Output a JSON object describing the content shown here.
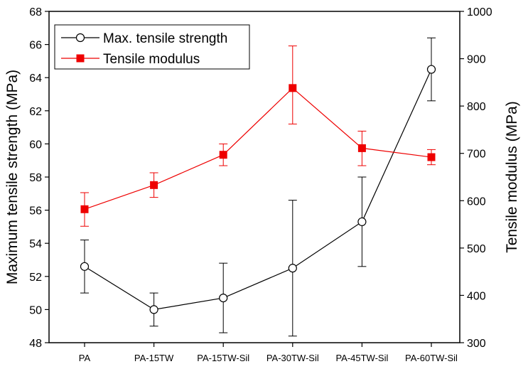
{
  "chart_data": {
    "type": "line",
    "title": "",
    "xlabel": "",
    "categories": [
      "PA",
      "PA-15TW",
      "PA-15TW-Sil",
      "PA-30TW-Sil",
      "PA-45TW-Sil",
      "PA-60TW-Sil"
    ],
    "left_axis": {
      "label": "Maximum tensile strength (MPa)",
      "range": [
        48,
        68
      ],
      "ticks": [
        "48",
        "50",
        "52",
        "54",
        "56",
        "58",
        "60",
        "62",
        "64",
        "66",
        "68"
      ]
    },
    "right_axis": {
      "label": "Tensile modulus (MPa)",
      "range": [
        300,
        1000
      ],
      "ticks": [
        "300",
        "400",
        "500",
        "600",
        "700",
        "800",
        "900",
        "1000"
      ]
    },
    "legend_position": "top-left",
    "series": [
      {
        "name": "Max. tensile strength",
        "axis": "left",
        "color": "#000000",
        "marker": "open-circle",
        "values": [
          52.6,
          50.0,
          50.7,
          52.5,
          55.3,
          64.5
        ],
        "error_low": [
          51.0,
          49.0,
          48.6,
          48.4,
          52.6,
          62.6
        ],
        "error_high": [
          54.2,
          51.0,
          52.8,
          56.6,
          58.0,
          66.4
        ]
      },
      {
        "name": "Tensile modulus",
        "axis": "right",
        "color": "#ee0000",
        "marker": "filled-square",
        "values": [
          582,
          633,
          697,
          838,
          711,
          692
        ],
        "error_low": [
          546,
          607,
          674,
          762,
          674,
          676
        ],
        "error_high": [
          617,
          659,
          720,
          927,
          747,
          708
        ]
      }
    ]
  }
}
